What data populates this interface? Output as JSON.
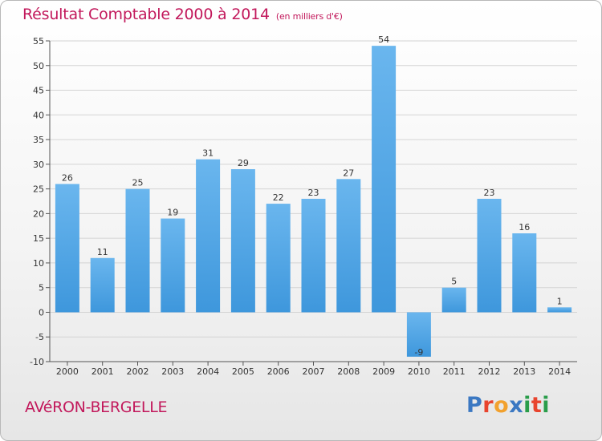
{
  "title": "Résultat Comptable 2000 à 2014",
  "unit_note": "(en milliers d'€)",
  "commune": "AVéRON-BERGELLE",
  "logo": {
    "text": "Proxiti",
    "letters": [
      "P",
      "r",
      "o",
      "x",
      "i",
      "t",
      "i"
    ],
    "colors": [
      "#3b78c2",
      "#e8442e",
      "#f2a12e",
      "#3b78c2",
      "#2a9d4a",
      "#e8442e",
      "#2a9d4a"
    ]
  },
  "colors": {
    "bar": "#3e97dc",
    "bar_light": "#6ab6ee",
    "accent": "#c2185b"
  },
  "chart_data": {
    "type": "bar",
    "title": "Résultat Comptable 2000 à 2014",
    "xlabel": "",
    "ylabel": "(en milliers d'€)",
    "categories": [
      "2000",
      "2001",
      "2002",
      "2003",
      "2004",
      "2005",
      "2006",
      "2007",
      "2008",
      "2009",
      "2010",
      "2011",
      "2012",
      "2013",
      "2014"
    ],
    "values": [
      26,
      11,
      25,
      19,
      31,
      29,
      22,
      23,
      27,
      54,
      -9,
      5,
      23,
      16,
      1
    ],
    "labels": [
      "26",
      "11",
      "25",
      "19",
      "31",
      "29",
      "22",
      "23",
      "27",
      "54",
      "-9",
      "5",
      "23",
      "16",
      "1"
    ],
    "ylim": [
      -10,
      55
    ],
    "yticks": [
      -10,
      -5,
      0,
      5,
      10,
      15,
      20,
      25,
      30,
      35,
      40,
      45,
      50,
      55
    ],
    "grid": true
  }
}
